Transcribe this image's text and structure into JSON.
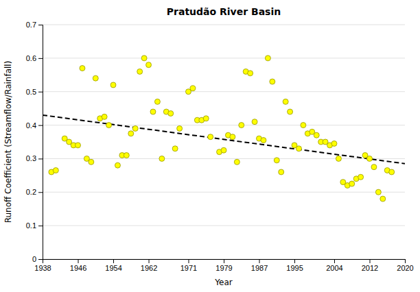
{
  "chart_data": {
    "type": "scatter",
    "title": "Pratudão River Basin",
    "xlabel": "Year",
    "ylabel": "Runoff Coefficient (Streamflow/Rainfall)",
    "xlim": [
      1938,
      2020
    ],
    "ylim": [
      0,
      0.7
    ],
    "xticks": [
      1938,
      1946,
      1954,
      1962,
      1971,
      1979,
      1987,
      1995,
      2004,
      2012,
      2020
    ],
    "yticks": [
      0,
      0.1,
      0.2,
      0.3,
      0.4,
      0.5,
      0.6,
      0.7
    ],
    "grid": "y",
    "series": [
      {
        "type": "scatter",
        "color": "#FFFF00",
        "marker": "circle",
        "x": [
          1940,
          1941,
          1943,
          1944,
          1945,
          1946,
          1947,
          1948,
          1949,
          1950,
          1951,
          1952,
          1953,
          1954,
          1955,
          1956,
          1957,
          1958,
          1959,
          1960,
          1961,
          1962,
          1963,
          1964,
          1965,
          1966,
          1967,
          1968,
          1969,
          1971,
          1972,
          1973,
          1974,
          1975,
          1976,
          1978,
          1979,
          1980,
          1981,
          1982,
          1983,
          1984,
          1985,
          1986,
          1987,
          1988,
          1989,
          1990,
          1991,
          1992,
          1993,
          1994,
          1995,
          1996,
          1997,
          1998,
          1999,
          2000,
          2001,
          2002,
          2003,
          2004,
          2005,
          2006,
          2007,
          2008,
          2009,
          2010,
          2011,
          2012,
          2013,
          2014,
          2015,
          2016,
          2017
        ],
        "values": [
          0.26,
          0.265,
          0.36,
          0.35,
          0.34,
          0.34,
          0.57,
          0.3,
          0.29,
          0.54,
          0.42,
          0.425,
          0.4,
          0.52,
          0.28,
          0.31,
          0.31,
          0.375,
          0.39,
          0.56,
          0.6,
          0.58,
          0.44,
          0.47,
          0.3,
          0.44,
          0.435,
          0.33,
          0.39,
          0.5,
          0.51,
          0.415,
          0.415,
          0.42,
          0.365,
          0.32,
          0.325,
          0.37,
          0.365,
          0.29,
          0.4,
          0.56,
          0.555,
          0.41,
          0.36,
          0.355,
          0.6,
          0.53,
          0.295,
          0.26,
          0.47,
          0.44,
          0.34,
          0.33,
          0.4,
          0.375,
          0.38,
          0.37,
          0.35,
          0.35,
          0.34,
          0.345,
          0.3,
          0.23,
          0.22,
          0.225,
          0.24,
          0.245,
          0.31,
          0.3,
          0.275,
          0.2,
          0.18,
          0.265,
          0.26
        ]
      },
      {
        "type": "line",
        "color": "#000000",
        "line_style": "dashed",
        "x": [
          1938,
          2020
        ],
        "values": [
          0.43,
          0.285
        ]
      }
    ]
  }
}
